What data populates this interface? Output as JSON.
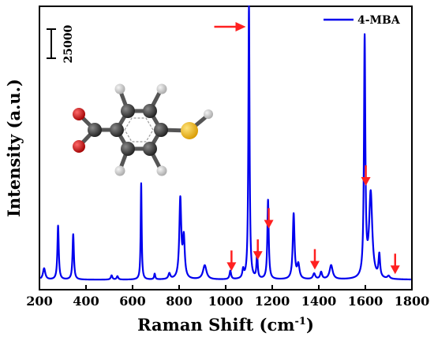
{
  "chart_data": {
    "type": "line",
    "xlabel": "Raman Shift (cm",
    "xlabel_sup": "-1",
    "xlabel_close": ")",
    "ylabel": "Intensity (a.u.)",
    "xlim": [
      200,
      1800
    ],
    "xticks": [
      "200",
      "400",
      "600",
      "800",
      "1000",
      "1200",
      "1400",
      "1600",
      "1800"
    ],
    "ylim": [
      0,
      1.0
    ],
    "scale_bar_label": "25000",
    "legend": {
      "position": "top-right",
      "label": "4-MBA",
      "color": "#0000ee"
    },
    "series": [
      {
        "name": "4-MBA",
        "color": "#0000ee",
        "baseline": 0.035,
        "peaks": [
          {
            "x": 220,
            "h": 0.04,
            "w": 6
          },
          {
            "x": 280,
            "h": 0.19,
            "w": 3.5
          },
          {
            "x": 345,
            "h": 0.16,
            "w": 3.5
          },
          {
            "x": 510,
            "h": 0.015,
            "w": 4
          },
          {
            "x": 535,
            "h": 0.012,
            "w": 4
          },
          {
            "x": 637,
            "h": 0.34,
            "w": 2.5
          },
          {
            "x": 695,
            "h": 0.02,
            "w": 3
          },
          {
            "x": 758,
            "h": 0.02,
            "w": 5
          },
          {
            "x": 805,
            "h": 0.28,
            "w": 5
          },
          {
            "x": 820,
            "h": 0.14,
            "w": 5
          },
          {
            "x": 910,
            "h": 0.05,
            "w": 9
          },
          {
            "x": 1020,
            "h": 0.03,
            "w": 4
          },
          {
            "x": 1075,
            "h": 0.03,
            "w": 4
          },
          {
            "x": 1100,
            "h": 0.97,
            "w": 3
          },
          {
            "x": 1135,
            "h": 0.09,
            "w": 3
          },
          {
            "x": 1182,
            "h": 0.28,
            "w": 3.5
          },
          {
            "x": 1292,
            "h": 0.23,
            "w": 4.5
          },
          {
            "x": 1312,
            "h": 0.05,
            "w": 6
          },
          {
            "x": 1380,
            "h": 0.02,
            "w": 6
          },
          {
            "x": 1410,
            "h": 0.025,
            "w": 5
          },
          {
            "x": 1453,
            "h": 0.05,
            "w": 8
          },
          {
            "x": 1597,
            "h": 0.84,
            "w": 3.5
          },
          {
            "x": 1623,
            "h": 0.3,
            "w": 8
          },
          {
            "x": 1660,
            "h": 0.08,
            "w": 4
          },
          {
            "x": 1700,
            "h": 0.01,
            "w": 6
          }
        ]
      }
    ],
    "annotations": {
      "arrow_color": "#ff2020",
      "down_arrows_x": [
        1025,
        1138,
        1185,
        1383,
        1602,
        1728
      ],
      "right_arrow_target_x": 1100
    }
  },
  "molecule": {
    "name": "4-mercaptobenzoic acid",
    "atom_colors": {
      "carbon": "#3a3a3a",
      "oxygen": "#cc1111",
      "sulfur": "#f2b800",
      "hydrogen": "#cfcfcf"
    }
  }
}
